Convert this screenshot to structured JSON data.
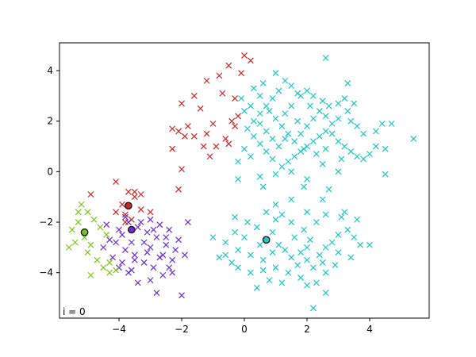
{
  "chart_data": {
    "type": "scatter",
    "title": "",
    "xlabel": "",
    "ylabel": "",
    "xlim": [
      -5.9,
      5.9
    ],
    "ylim": [
      -5.8,
      5.1
    ],
    "xticks": [
      -4,
      -2,
      0,
      2,
      4
    ],
    "yticks": [
      -4,
      -2,
      0,
      2,
      4
    ],
    "xtick_labels": [
      "−4",
      "−2",
      "0",
      "2",
      "4"
    ],
    "ytick_labels": [
      "−4",
      "−2",
      "0",
      "2",
      "4"
    ],
    "grid": false,
    "annotation": "i = 0",
    "marker": "x",
    "series": [
      {
        "color": "#c62828",
        "points": [
          [
            0.0,
            4.6
          ],
          [
            0.2,
            4.4
          ],
          [
            -0.5,
            4.2
          ],
          [
            -0.1,
            3.9
          ],
          [
            -0.8,
            3.8
          ],
          [
            -1.2,
            3.6
          ],
          [
            -1.6,
            3.0
          ],
          [
            -2.0,
            2.7
          ],
          [
            -0.7,
            3.1
          ],
          [
            -0.3,
            2.9
          ],
          [
            -1.4,
            2.5
          ],
          [
            -0.2,
            2.2
          ],
          [
            -0.4,
            2.0
          ],
          [
            -1.0,
            1.9
          ],
          [
            -1.8,
            1.8
          ],
          [
            -2.3,
            1.7
          ],
          [
            -2.1,
            1.6
          ],
          [
            -1.9,
            1.4
          ],
          [
            -1.6,
            1.4
          ],
          [
            -1.2,
            1.5
          ],
          [
            -0.6,
            1.3
          ],
          [
            -0.5,
            1.1
          ],
          [
            -0.9,
            1.0
          ],
          [
            -1.3,
            1.0
          ],
          [
            -0.3,
            1.8
          ],
          [
            -2.3,
            0.9
          ],
          [
            -1.1,
            0.6
          ],
          [
            -2.0,
            0.1
          ],
          [
            -2.1,
            -0.7
          ],
          [
            -3.5,
            -0.8
          ],
          [
            -3.7,
            -0.8
          ],
          [
            -4.1,
            -0.4
          ],
          [
            -4.9,
            -0.9
          ],
          [
            -3.3,
            -0.9
          ],
          [
            -3.5,
            -1.0
          ],
          [
            -3.9,
            -1.3
          ],
          [
            -4.1,
            -1.6
          ],
          [
            -3.8,
            -1.7
          ],
          [
            -3.6,
            -1.9
          ],
          [
            -3.0,
            -1.6
          ],
          [
            -3.3,
            -1.5
          ],
          [
            -3.8,
            -2.0
          ]
        ]
      },
      {
        "color": "#22c1c3",
        "points": [
          [
            1.0,
            3.9
          ],
          [
            1.3,
            3.6
          ],
          [
            1.5,
            3.4
          ],
          [
            1.7,
            3.1
          ],
          [
            2.0,
            3.2
          ],
          [
            2.2,
            3.0
          ],
          [
            2.5,
            2.8
          ],
          [
            2.7,
            2.6
          ],
          [
            3.0,
            2.7
          ],
          [
            3.2,
            2.9
          ],
          [
            3.5,
            2.7
          ],
          [
            3.3,
            2.4
          ],
          [
            3.0,
            2.1
          ],
          [
            2.8,
            1.9
          ],
          [
            2.6,
            1.6
          ],
          [
            2.4,
            1.4
          ],
          [
            2.2,
            1.2
          ],
          [
            2.0,
            1.0
          ],
          [
            1.8,
            0.8
          ],
          [
            1.6,
            0.6
          ],
          [
            1.4,
            0.4
          ],
          [
            1.2,
            0.2
          ],
          [
            0.9,
            0.5
          ],
          [
            0.7,
            0.8
          ],
          [
            0.5,
            1.1
          ],
          [
            0.3,
            1.4
          ],
          [
            0.1,
            1.7
          ],
          [
            0.3,
            2.0
          ],
          [
            0.5,
            2.3
          ],
          [
            0.7,
            2.6
          ],
          [
            0.9,
            2.9
          ],
          [
            1.1,
            3.2
          ],
          [
            0.6,
            3.5
          ],
          [
            0.3,
            3.3
          ],
          [
            0.5,
            3.0
          ],
          [
            0.8,
            2.4
          ],
          [
            1.0,
            2.1
          ],
          [
            1.2,
            1.8
          ],
          [
            1.4,
            1.5
          ],
          [
            1.6,
            1.2
          ],
          [
            1.8,
            1.5
          ],
          [
            2.0,
            1.8
          ],
          [
            2.2,
            2.1
          ],
          [
            2.4,
            2.4
          ],
          [
            2.6,
            2.2
          ],
          [
            2.8,
            1.5
          ],
          [
            3.0,
            1.2
          ],
          [
            3.2,
            1.0
          ],
          [
            3.4,
            0.8
          ],
          [
            3.6,
            0.6
          ],
          [
            3.8,
            0.5
          ],
          [
            4.0,
            0.7
          ],
          [
            4.2,
            1.0
          ],
          [
            4.5,
            0.9
          ],
          [
            4.4,
            1.9
          ],
          [
            4.2,
            1.6
          ],
          [
            3.8,
            1.5
          ],
          [
            3.6,
            1.8
          ],
          [
            3.4,
            2.0
          ],
          [
            3.3,
            3.5
          ],
          [
            2.6,
            4.5
          ],
          [
            1.8,
            3.0
          ],
          [
            1.5,
            2.6
          ],
          [
            1.3,
            2.3
          ],
          [
            1.1,
            1.0
          ],
          [
            0.9,
            1.3
          ],
          [
            0.7,
            1.6
          ],
          [
            0.5,
            1.9
          ],
          [
            0.2,
            0.6
          ],
          [
            0.0,
            0.9
          ],
          [
            -0.2,
            0.4
          ],
          [
            -0.2,
            -0.3
          ],
          [
            0.5,
            -0.2
          ],
          [
            1.0,
            -0.1
          ],
          [
            1.5,
            0.0
          ],
          [
            2.0,
            -0.3
          ],
          [
            2.5,
            0.3
          ],
          [
            3.0,
            0.0
          ],
          [
            2.7,
            -0.7
          ],
          [
            1.9,
            -0.6
          ],
          [
            2.5,
            -1.1
          ],
          [
            4.5,
            -0.1
          ],
          [
            5.4,
            1.3
          ],
          [
            4.7,
            1.9
          ],
          [
            0.6,
            -0.6
          ],
          [
            1.9,
            0.9
          ],
          [
            2.3,
            0.7
          ],
          [
            2.6,
            0.9
          ],
          [
            3.1,
            0.5
          ],
          [
            1.3,
            1.3
          ],
          [
            1.7,
            2.0
          ],
          [
            2.1,
            2.6
          ],
          [
            0.2,
            2.6
          ],
          [
            -0.1,
            2.9
          ],
          [
            0.0,
            2.4
          ],
          [
            1.0,
            -1.3
          ],
          [
            1.5,
            -1.1
          ],
          [
            2.0,
            -1.6
          ],
          [
            2.6,
            -1.7
          ],
          [
            3.1,
            -1.8
          ],
          [
            3.2,
            -1.6
          ],
          [
            3.6,
            -1.9
          ],
          [
            1.0,
            -1.9
          ],
          [
            0.4,
            -2.2
          ],
          [
            0.0,
            -2.6
          ],
          [
            -0.3,
            -2.4
          ],
          [
            -0.6,
            -2.8
          ],
          [
            -0.2,
            -3.1
          ],
          [
            0.2,
            -3.3
          ],
          [
            0.6,
            -3.5
          ],
          [
            0.9,
            -3.2
          ],
          [
            1.1,
            -2.9
          ],
          [
            1.3,
            -3.1
          ],
          [
            1.5,
            -3.4
          ],
          [
            1.8,
            -3.2
          ],
          [
            2.0,
            -3.5
          ],
          [
            2.2,
            -3.8
          ],
          [
            2.4,
            -3.3
          ],
          [
            2.6,
            -3.0
          ],
          [
            2.8,
            -2.8
          ],
          [
            3.0,
            -2.5
          ],
          [
            3.3,
            -2.3
          ],
          [
            3.5,
            -2.6
          ],
          [
            3.7,
            -2.9
          ],
          [
            4.0,
            -2.9
          ],
          [
            3.4,
            -3.4
          ],
          [
            2.9,
            -3.7
          ],
          [
            2.6,
            -4.0
          ],
          [
            2.3,
            -4.4
          ],
          [
            1.8,
            -4.2
          ],
          [
            1.4,
            -4.0
          ],
          [
            1.0,
            -3.8
          ],
          [
            0.6,
            -3.9
          ],
          [
            0.2,
            -4.0
          ],
          [
            -0.2,
            -3.8
          ],
          [
            -0.4,
            -3.6
          ],
          [
            -0.6,
            -3.3
          ],
          [
            0.8,
            -4.3
          ],
          [
            1.2,
            -4.4
          ],
          [
            0.4,
            -4.6
          ],
          [
            2.0,
            -4.5
          ],
          [
            2.6,
            -4.8
          ],
          [
            2.2,
            -5.4
          ],
          [
            1.6,
            -2.6
          ],
          [
            1.9,
            -2.3
          ],
          [
            2.1,
            -2.7
          ],
          [
            2.3,
            -2.0
          ],
          [
            0.1,
            -2.0
          ],
          [
            -0.3,
            -1.8
          ],
          [
            0.7,
            -1.6
          ],
          [
            1.2,
            -1.7
          ],
          [
            1.5,
            -2.0
          ],
          [
            0.5,
            -2.9
          ],
          [
            1.7,
            -3.7
          ],
          [
            2.0,
            -3.0
          ],
          [
            2.5,
            -3.6
          ],
          [
            3.0,
            -3.2
          ],
          [
            0.9,
            -2.4
          ],
          [
            -0.8,
            -3.4
          ],
          [
            -1.0,
            -2.6
          ]
        ]
      },
      {
        "color": "#6a2fc4",
        "points": [
          [
            -3.7,
            -2.0
          ],
          [
            -3.4,
            -2.2
          ],
          [
            -3.1,
            -2.4
          ],
          [
            -2.8,
            -2.6
          ],
          [
            -2.5,
            -2.9
          ],
          [
            -2.2,
            -3.1
          ],
          [
            -3.9,
            -2.5
          ],
          [
            -4.1,
            -2.8
          ],
          [
            -3.8,
            -3.1
          ],
          [
            -3.5,
            -3.3
          ],
          [
            -3.2,
            -3.6
          ],
          [
            -2.9,
            -3.8
          ],
          [
            -2.6,
            -4.1
          ],
          [
            -3.3,
            -2.0
          ],
          [
            -3.0,
            -1.9
          ],
          [
            -2.7,
            -2.1
          ],
          [
            -2.4,
            -2.3
          ],
          [
            -2.1,
            -2.7
          ],
          [
            -1.8,
            -2.0
          ],
          [
            -1.9,
            -3.3
          ],
          [
            -2.3,
            -3.5
          ],
          [
            -2.6,
            -3.3
          ],
          [
            -3.0,
            -3.0
          ],
          [
            -3.6,
            -2.8
          ],
          [
            -4.0,
            -2.3
          ],
          [
            -4.3,
            -2.7
          ],
          [
            -4.5,
            -3.0
          ],
          [
            -4.2,
            -3.4
          ],
          [
            -3.9,
            -3.6
          ],
          [
            -3.6,
            -3.9
          ],
          [
            -3.4,
            -4.4
          ],
          [
            -3.0,
            -4.3
          ],
          [
            -2.8,
            -4.8
          ],
          [
            -2.4,
            -3.8
          ],
          [
            -2.3,
            -4.0
          ],
          [
            -2.0,
            -4.9
          ],
          [
            -3.5,
            -3.5
          ],
          [
            -3.2,
            -2.8
          ],
          [
            -2.9,
            -2.3
          ],
          [
            -2.7,
            -3.4
          ],
          [
            -2.5,
            -2.6
          ],
          [
            -3.8,
            -1.8
          ],
          [
            -4.4,
            -2.1
          ],
          [
            -4.0,
            -3.8
          ],
          [
            -3.7,
            -4.0
          ],
          [
            -3.1,
            -3.2
          ]
        ]
      },
      {
        "color": "#7ec21f",
        "points": [
          [
            -5.2,
            -1.3
          ],
          [
            -5.0,
            -1.6
          ],
          [
            -4.8,
            -1.9
          ],
          [
            -5.3,
            -2.0
          ],
          [
            -5.5,
            -2.3
          ],
          [
            -5.1,
            -2.6
          ],
          [
            -4.9,
            -2.9
          ],
          [
            -4.6,
            -2.2
          ],
          [
            -4.4,
            -2.5
          ],
          [
            -5.4,
            -2.8
          ],
          [
            -5.6,
            -3.0
          ],
          [
            -5.0,
            -3.2
          ],
          [
            -4.7,
            -3.5
          ],
          [
            -4.5,
            -3.8
          ],
          [
            -4.3,
            -3.6
          ],
          [
            -4.1,
            -3.9
          ],
          [
            -4.9,
            -4.1
          ],
          [
            -4.3,
            -4.0
          ],
          [
            -5.3,
            -1.6
          ]
        ]
      }
    ],
    "centroids": [
      {
        "x": -3.7,
        "y": -1.35,
        "color": "#c62828"
      },
      {
        "x": 0.7,
        "y": -2.7,
        "color": "#22c1c3"
      },
      {
        "x": -3.6,
        "y": -2.3,
        "color": "#6a2fc4"
      },
      {
        "x": -5.1,
        "y": -2.4,
        "color": "#7ec21f"
      }
    ]
  }
}
